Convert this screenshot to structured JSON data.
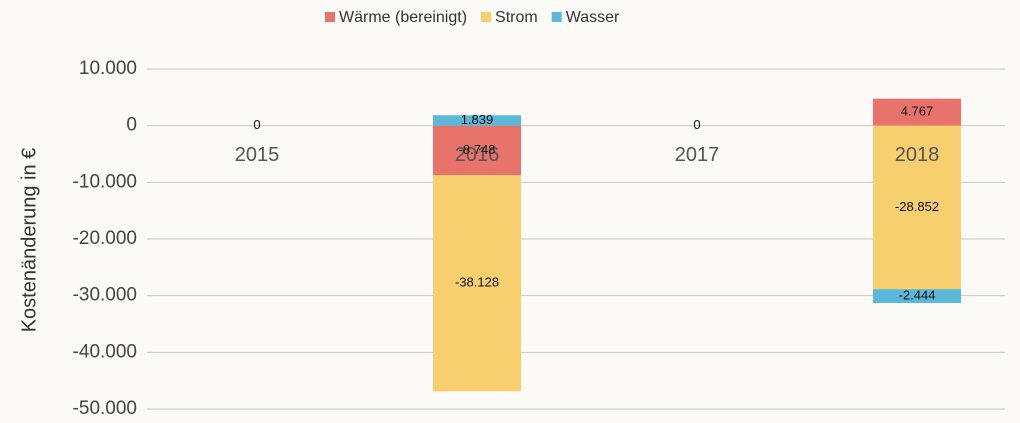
{
  "chart_data": {
    "type": "stacked_bar",
    "ylabel": "Kostenänderung in €",
    "categories": [
      "2015",
      "2016",
      "2017",
      "2018"
    ],
    "series": [
      {
        "name": "Wärme (bereinigt)",
        "color": "#e8736a",
        "values": [
          0,
          -8748,
          0,
          4767
        ],
        "value_labels": [
          null,
          "-8.748",
          null,
          "4.767"
        ]
      },
      {
        "name": "Strom",
        "color": "#f8cf6e",
        "values": [
          0,
          -38128,
          0,
          -28852
        ],
        "value_labels": [
          "0",
          "-38.128",
          "0",
          "-28.852"
        ]
      },
      {
        "name": "Wasser",
        "color": "#5bb8d8",
        "values": [
          0,
          1839,
          0,
          -2444
        ],
        "value_labels": [
          null,
          "1.839",
          null,
          "-2.444"
        ]
      }
    ],
    "ylim": [
      -50000,
      10000
    ],
    "yticks": [
      {
        "value": -50000,
        "label": "-50.000"
      },
      {
        "value": -40000,
        "label": "-40.000"
      },
      {
        "value": -30000,
        "label": "-30.000"
      },
      {
        "value": -20000,
        "label": "-20.000"
      },
      {
        "value": -10000,
        "label": "-10.000"
      },
      0,
      {
        "value": 10000,
        "label": "10.000"
      }
    ],
    "grid": true,
    "legend": "top"
  }
}
